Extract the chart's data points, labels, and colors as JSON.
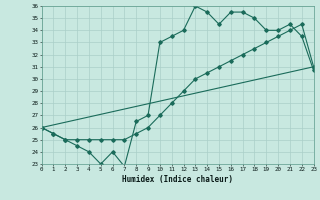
{
  "title": "",
  "xlabel": "Humidex (Indice chaleur)",
  "bg_color": "#c8e8e0",
  "line_color": "#1a6b5a",
  "grid_color": "#aacfc8",
  "xmin": 0,
  "xmax": 23,
  "ymin": 23,
  "ymax": 36,
  "line1_x": [
    0,
    1,
    2,
    3,
    4,
    5,
    6,
    7,
    8,
    9,
    10,
    11,
    12,
    13,
    14,
    15,
    16,
    17,
    18,
    19,
    20,
    21,
    22,
    23
  ],
  "line1_y": [
    26.0,
    25.5,
    25.0,
    24.5,
    24.0,
    23.0,
    24.0,
    22.8,
    26.5,
    27.0,
    33.0,
    33.5,
    34.0,
    36.0,
    35.5,
    34.5,
    35.5,
    35.5,
    35.0,
    34.0,
    34.0,
    34.5,
    33.5,
    30.7
  ],
  "line2_x": [
    0,
    1,
    2,
    3,
    4,
    5,
    6,
    7,
    8,
    9,
    10,
    11,
    12,
    13,
    14,
    15,
    16,
    17,
    18,
    19,
    20,
    21,
    22,
    23
  ],
  "line2_y": [
    26.0,
    25.5,
    25.0,
    25.0,
    25.0,
    25.0,
    25.0,
    25.0,
    25.5,
    26.0,
    27.0,
    28.0,
    29.0,
    30.0,
    30.5,
    31.0,
    31.5,
    32.0,
    32.5,
    33.0,
    33.5,
    34.0,
    34.5,
    31.0
  ],
  "line3_x": [
    0,
    23
  ],
  "line3_y": [
    26.0,
    31.0
  ]
}
